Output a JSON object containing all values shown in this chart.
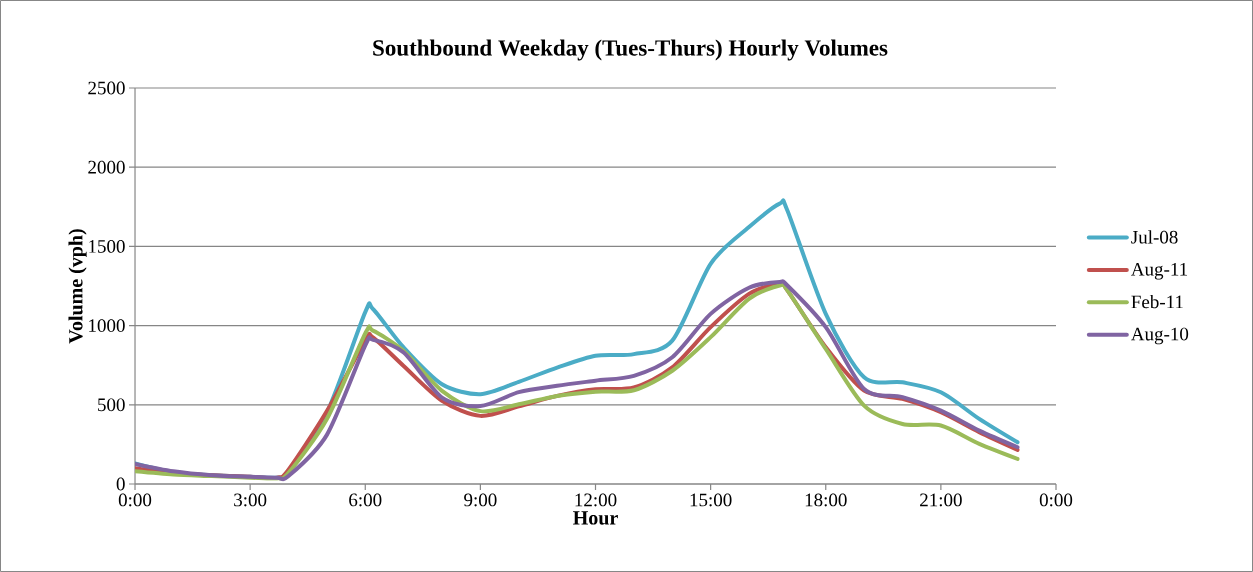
{
  "chart_data": {
    "type": "line",
    "title": "Southbound Weekday (Tues-Thurs) Hourly Volumes",
    "xlabel": "Hour",
    "ylabel": "Volume (vph)",
    "x": [
      0,
      1,
      2,
      3,
      3.7,
      4,
      5,
      6,
      6.2,
      7,
      8,
      9,
      10,
      11,
      12,
      13,
      14,
      15,
      16,
      16.8,
      17,
      18,
      19,
      20,
      21,
      22,
      23
    ],
    "series": [
      {
        "name": "Jul-08",
        "color": "#4bacc6",
        "values": [
          130,
          75,
          55,
          45,
          40,
          80,
          450,
          1085,
          1105,
          862,
          630,
          567,
          645,
          735,
          810,
          820,
          905,
          1390,
          1622,
          1770,
          1727,
          1074,
          674,
          642,
          579,
          411,
          263
        ]
      },
      {
        "name": "Aug-11",
        "color": "#c0504d",
        "values": [
          100,
          70,
          55,
          45,
          40,
          90,
          460,
          905,
          925,
          745,
          525,
          430,
          490,
          556,
          598,
          609,
          736,
          990,
          1200,
          1264,
          1222,
          864,
          590,
          537,
          453,
          327,
          215
        ]
      },
      {
        "name": "Feb-11",
        "color": "#9bbb59",
        "values": [
          80,
          60,
          50,
          40,
          35,
          70,
          410,
          950,
          968,
          840,
          588,
          460,
          503,
          556,
          583,
          592,
          715,
          927,
          1169,
          1253,
          1222,
          853,
          495,
          379,
          369,
          253,
          158
        ]
      },
      {
        "name": "Aug-10",
        "color": "#8064a2",
        "values": [
          127,
          80,
          55,
          45,
          40,
          50,
          310,
          875,
          910,
          830,
          545,
          492,
          580,
          620,
          652,
          683,
          800,
          1074,
          1239,
          1275,
          1253,
          990,
          600,
          548,
          463,
          337,
          232
        ]
      }
    ],
    "xlim": [
      0,
      24
    ],
    "xticks": [
      {
        "value": 0,
        "label": "0:00"
      },
      {
        "value": 3,
        "label": "3:00"
      },
      {
        "value": 6,
        "label": "6:00"
      },
      {
        "value": 9,
        "label": "9:00"
      },
      {
        "value": 12,
        "label": "12:00"
      },
      {
        "value": 15,
        "label": "15:00"
      },
      {
        "value": 18,
        "label": "18:00"
      },
      {
        "value": 21,
        "label": "21:00"
      },
      {
        "value": 24,
        "label": "0:00"
      }
    ],
    "ylim": [
      0,
      2500
    ],
    "yticks": [
      0,
      500,
      1000,
      1500,
      2000,
      2500
    ],
    "grid": "y",
    "legend": "right",
    "marker": "none",
    "line_style": "solid"
  }
}
